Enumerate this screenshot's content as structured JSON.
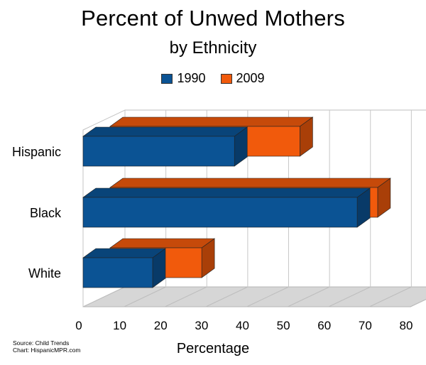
{
  "chart_data": {
    "type": "bar",
    "orientation": "horizontal",
    "title": "Percent of Unwed Mothers",
    "subtitle": "by Ethnicity",
    "xlabel": "Percentage",
    "categories": [
      "Hispanic",
      "Black",
      "White"
    ],
    "series": [
      {
        "name": "1990",
        "values": [
          37,
          67,
          17
        ],
        "color": "#0b5394"
      },
      {
        "name": "2009",
        "values": [
          53,
          72,
          29
        ],
        "color": "#f15a0c"
      }
    ],
    "xlim": [
      0,
      80
    ],
    "xticks": [
      "0",
      "10",
      "20",
      "30",
      "40",
      "50",
      "60",
      "70",
      "80"
    ],
    "grid": true,
    "legend_position": "top",
    "style": "3d"
  },
  "source": {
    "line1": "Source: Child Trends",
    "line2": "Chart: HispanicMPR.com"
  }
}
